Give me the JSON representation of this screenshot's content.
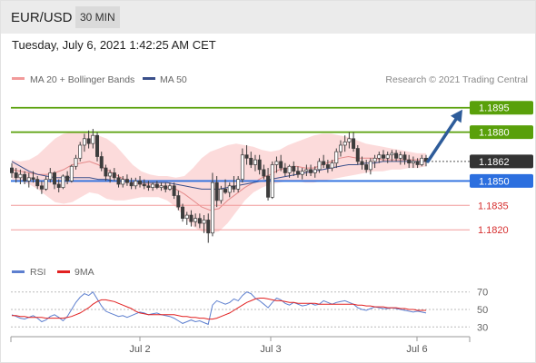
{
  "header": {
    "symbol": "EUR/USD",
    "timeframe": "30 MIN"
  },
  "datetime": "Tuesday, July 6, 2021 1:42:25 AM CET",
  "colors": {
    "price_candle": "#3c3c3c",
    "bollinger_fill": "#fbd5d5",
    "ma20": "#e48a8a",
    "ma50": "#3a4f8a",
    "resistance": "#59a00a",
    "pivot": "#2c6fdf",
    "support": "#f29a9a",
    "current": "#333333",
    "arrow": "#2e5c9a",
    "rsi": "#5d7fcf",
    "rsi_ma": "#e22121"
  },
  "icons": {
    "legend_ma20": "pink-line-swatch",
    "legend_ma50": "blue-line-swatch",
    "legend_rsi": "blue-line-swatch",
    "legend_9ma": "red-line-swatch",
    "arrow": "up-right-arrow"
  },
  "chart_data": {
    "type": "candlestick",
    "legend": [
      {
        "name": "MA 20 + Bollinger Bands",
        "color": "#f29a9a"
      },
      {
        "name": "MA 50",
        "color": "#3a4f8a"
      }
    ],
    "credit": "Research © 2021 Trading Central",
    "x_ticks": [
      "Jul 2",
      "Jul 3",
      "Jul 6"
    ],
    "ylim": [
      1.18045,
      1.1906
    ],
    "current_price": "1.1862",
    "levels": [
      {
        "value": "1.1895",
        "kind": "resistance",
        "label_style": "box"
      },
      {
        "value": "1.1880",
        "kind": "resistance",
        "label_style": "box"
      },
      {
        "value": "1.1850",
        "kind": "pivot",
        "label_style": "box"
      },
      {
        "value": "1.1835",
        "kind": "support",
        "label_style": "text"
      },
      {
        "value": "1.1820",
        "kind": "support",
        "label_style": "text"
      }
    ],
    "target_arrow": {
      "from": 1.1862,
      "to": 1.1895
    },
    "candles": [
      [
        1.1858,
        1.1861,
        1.1852,
        1.1855
      ],
      [
        1.1855,
        1.1858,
        1.1849,
        1.1852
      ],
      [
        1.1852,
        1.1857,
        1.1848,
        1.1854
      ],
      [
        1.1854,
        1.1856,
        1.1848,
        1.185
      ],
      [
        1.185,
        1.1855,
        1.1846,
        1.1852
      ],
      [
        1.1852,
        1.1856,
        1.1849,
        1.1851
      ],
      [
        1.1851,
        1.1853,
        1.1845,
        1.1847
      ],
      [
        1.1847,
        1.185,
        1.1842,
        1.1845
      ],
      [
        1.1845,
        1.1853,
        1.1844,
        1.1851
      ],
      [
        1.1851,
        1.1858,
        1.1849,
        1.1855
      ],
      [
        1.1855,
        1.1856,
        1.1845,
        1.1848
      ],
      [
        1.1848,
        1.1851,
        1.1843,
        1.1846
      ],
      [
        1.1846,
        1.1854,
        1.1845,
        1.1853
      ],
      [
        1.1853,
        1.1856,
        1.1848,
        1.185
      ],
      [
        1.185,
        1.186,
        1.1849,
        1.1859
      ],
      [
        1.1859,
        1.1866,
        1.1857,
        1.1864
      ],
      [
        1.1864,
        1.1874,
        1.1862,
        1.1872
      ],
      [
        1.1872,
        1.1879,
        1.1868,
        1.1876
      ],
      [
        1.1876,
        1.1881,
        1.187,
        1.1873
      ],
      [
        1.1873,
        1.1882,
        1.187,
        1.1878
      ],
      [
        1.1878,
        1.188,
        1.1862,
        1.1865
      ],
      [
        1.1865,
        1.1868,
        1.1856,
        1.1858
      ],
      [
        1.1858,
        1.186,
        1.185,
        1.1853
      ],
      [
        1.1853,
        1.1857,
        1.1849,
        1.1855
      ],
      [
        1.1855,
        1.1858,
        1.185,
        1.1852
      ],
      [
        1.1852,
        1.1854,
        1.1846,
        1.1848
      ],
      [
        1.1848,
        1.1853,
        1.1846,
        1.1851
      ],
      [
        1.1851,
        1.1854,
        1.1847,
        1.1849
      ],
      [
        1.1849,
        1.1852,
        1.1845,
        1.1847
      ],
      [
        1.1847,
        1.1852,
        1.1845,
        1.185
      ],
      [
        1.185,
        1.1853,
        1.1846,
        1.1848
      ],
      [
        1.1848,
        1.1851,
        1.1845,
        1.1847
      ],
      [
        1.1847,
        1.185,
        1.1844,
        1.1846
      ],
      [
        1.1846,
        1.1849,
        1.1844,
        1.1848
      ],
      [
        1.1848,
        1.185,
        1.1845,
        1.1846
      ],
      [
        1.1846,
        1.1849,
        1.1844,
        1.1847
      ],
      [
        1.1847,
        1.1849,
        1.1843,
        1.1845
      ],
      [
        1.1845,
        1.1849,
        1.1844,
        1.1847
      ],
      [
        1.1847,
        1.1849,
        1.1839,
        1.1841
      ],
      [
        1.1841,
        1.1844,
        1.1832,
        1.1834
      ],
      [
        1.1834,
        1.1836,
        1.1825,
        1.1827
      ],
      [
        1.1827,
        1.1831,
        1.1823,
        1.1829
      ],
      [
        1.1829,
        1.1832,
        1.1822,
        1.1825
      ],
      [
        1.1825,
        1.183,
        1.1822,
        1.1827
      ],
      [
        1.1827,
        1.183,
        1.1821,
        1.1824
      ],
      [
        1.1824,
        1.1829,
        1.1818,
        1.1826
      ],
      [
        1.1826,
        1.183,
        1.1812,
        1.1818
      ],
      [
        1.1818,
        1.1855,
        1.1816,
        1.1849
      ],
      [
        1.1849,
        1.1853,
        1.1834,
        1.1838
      ],
      [
        1.1838,
        1.1847,
        1.1836,
        1.1845
      ],
      [
        1.1845,
        1.1851,
        1.1842,
        1.1843
      ],
      [
        1.1843,
        1.1849,
        1.184,
        1.1847
      ],
      [
        1.1847,
        1.1853,
        1.1843,
        1.1845
      ],
      [
        1.1845,
        1.1853,
        1.1843,
        1.1851
      ],
      [
        1.1851,
        1.187,
        1.1849,
        1.1866
      ],
      [
        1.1866,
        1.1872,
        1.186,
        1.1864
      ],
      [
        1.1864,
        1.1868,
        1.1858,
        1.186
      ],
      [
        1.186,
        1.1866,
        1.1856,
        1.1863
      ],
      [
        1.1863,
        1.1866,
        1.1854,
        1.1857
      ],
      [
        1.1857,
        1.186,
        1.1851,
        1.1853
      ],
      [
        1.1853,
        1.1858,
        1.1838,
        1.184
      ],
      [
        1.184,
        1.1862,
        1.1839,
        1.186
      ],
      [
        1.186,
        1.1865,
        1.1855,
        1.1862
      ],
      [
        1.1862,
        1.1866,
        1.1856,
        1.1858
      ],
      [
        1.1858,
        1.1861,
        1.1853,
        1.1855
      ],
      [
        1.1855,
        1.186,
        1.1852,
        1.1859
      ],
      [
        1.1859,
        1.1862,
        1.1853,
        1.1856
      ],
      [
        1.1856,
        1.1859,
        1.1852,
        1.1854
      ],
      [
        1.1854,
        1.1858,
        1.1851,
        1.1856
      ],
      [
        1.1856,
        1.186,
        1.1853,
        1.1857
      ],
      [
        1.1857,
        1.186,
        1.1853,
        1.1855
      ],
      [
        1.1855,
        1.1859,
        1.1852,
        1.1857
      ],
      [
        1.1857,
        1.1864,
        1.1855,
        1.1862
      ],
      [
        1.1862,
        1.1866,
        1.1858,
        1.186
      ],
      [
        1.186,
        1.1863,
        1.1855,
        1.1858
      ],
      [
        1.1858,
        1.1863,
        1.1856,
        1.1861
      ],
      [
        1.1861,
        1.187,
        1.1858,
        1.1868
      ],
      [
        1.1868,
        1.1875,
        1.1865,
        1.1872
      ],
      [
        1.1872,
        1.1878,
        1.1868,
        1.1874
      ],
      [
        1.1874,
        1.188,
        1.187,
        1.1876
      ],
      [
        1.1876,
        1.188,
        1.1868,
        1.187
      ],
      [
        1.187,
        1.1872,
        1.186,
        1.1862
      ],
      [
        1.1862,
        1.1865,
        1.1857,
        1.186
      ],
      [
        1.186,
        1.1863,
        1.1855,
        1.1857
      ],
      [
        1.1857,
        1.1864,
        1.1854,
        1.1862
      ],
      [
        1.1862,
        1.1866,
        1.1858,
        1.1864
      ],
      [
        1.1864,
        1.1868,
        1.1861,
        1.1866
      ],
      [
        1.1866,
        1.1869,
        1.1862,
        1.1864
      ],
      [
        1.1864,
        1.1868,
        1.1861,
        1.1866
      ],
      [
        1.1866,
        1.1869,
        1.1862,
        1.1867
      ],
      [
        1.1867,
        1.1869,
        1.1862,
        1.1864
      ],
      [
        1.1864,
        1.1868,
        1.186,
        1.1866
      ],
      [
        1.1866,
        1.1868,
        1.186,
        1.1863
      ],
      [
        1.1863,
        1.1866,
        1.1858,
        1.1861
      ],
      [
        1.1861,
        1.1865,
        1.1858,
        1.1862
      ],
      [
        1.1862,
        1.1864,
        1.1858,
        1.186
      ],
      [
        1.186,
        1.1866,
        1.1859,
        1.1864
      ],
      [
        1.1864,
        1.1866,
        1.1859,
        1.1862
      ]
    ],
    "ma20": [
      1.1857,
      1.1856,
      1.1855,
      1.1854,
      1.1854,
      1.1855,
      1.1857,
      1.186,
      1.1861,
      1.1862,
      1.186,
      1.1857,
      1.1854,
      1.1851,
      1.1849,
      1.1848,
      1.1848,
      1.1847,
      1.1846,
      1.1845,
      1.1842,
      1.1838,
      1.1834,
      1.1832,
      1.1833,
      1.1838,
      1.1842,
      1.1846,
      1.1849,
      1.1852,
      1.1854,
      1.1857,
      1.1858,
      1.1859,
      1.1858,
      1.1858,
      1.186,
      1.1862,
      1.1864,
      1.1865,
      1.1864,
      1.1864,
      1.1864,
      1.1863,
      1.1863,
      1.1863,
      1.1863,
      1.1863,
      1.1863
    ],
    "ma50": [
      1.1862,
      1.1859,
      1.1856,
      1.1854,
      1.1853,
      1.1852,
      1.1852,
      1.1852,
      1.1852,
      1.1852,
      1.1851,
      1.1851,
      1.185,
      1.185,
      1.185,
      1.1849,
      1.1849,
      1.1849,
      1.1849,
      1.1848,
      1.1847,
      1.1846,
      1.1845,
      1.1845,
      1.1845,
      1.1846,
      1.1847,
      1.1848,
      1.1849,
      1.185,
      1.1851,
      1.1852,
      1.1853,
      1.1854,
      1.1855,
      1.1856,
      1.1857,
      1.1858,
      1.1859,
      1.186,
      1.186,
      1.1861,
      1.1861,
      1.1862,
      1.1862,
      1.1862,
      1.1862,
      1.1862,
      1.1862
    ],
    "bb_upper": [
      1.1863,
      1.1862,
      1.1863,
      1.1866,
      1.1871,
      1.1876,
      1.1879,
      1.188,
      1.188,
      1.1879,
      1.1878,
      1.1876,
      1.1872,
      1.1866,
      1.186,
      1.1856,
      1.1854,
      1.1853,
      1.1853,
      1.1852,
      1.1853,
      1.1858,
      1.1864,
      1.1868,
      1.187,
      1.1872,
      1.1873,
      1.1872,
      1.1871,
      1.1869,
      1.1868,
      1.1869,
      1.1872,
      1.1874,
      1.1876,
      1.1878,
      1.1879,
      1.1879,
      1.1878,
      1.1877,
      1.1875,
      1.1873,
      1.1872,
      1.1871,
      1.187,
      1.1869,
      1.1868,
      1.1867,
      1.1867
    ],
    "bb_lower": [
      1.1851,
      1.185,
      1.1848,
      1.1845,
      1.1841,
      1.1837,
      1.1836,
      1.1837,
      1.184,
      1.1843,
      1.1842,
      1.1839,
      1.1838,
      1.1838,
      1.1839,
      1.184,
      1.184,
      1.184,
      1.1838,
      1.1834,
      1.1828,
      1.1822,
      1.1819,
      1.1818,
      1.1819,
      1.1824,
      1.1831,
      1.1838,
      1.1843,
      1.1846,
      1.1848,
      1.1849,
      1.185,
      1.185,
      1.1849,
      1.1849,
      1.185,
      1.1851,
      1.1852,
      1.1853,
      1.1854,
      1.1855,
      1.1856,
      1.1856,
      1.1857,
      1.1857,
      1.1858,
      1.1858,
      1.1859
    ],
    "indicator": {
      "legend": [
        {
          "name": "RSI",
          "color": "#5d7fcf"
        },
        {
          "name": "9MA",
          "color": "#e22121"
        }
      ],
      "levels": [
        70,
        50,
        30
      ],
      "ylim": [
        22,
        78
      ],
      "rsi": [
        44,
        42,
        40,
        39,
        41,
        43,
        40,
        36,
        38,
        42,
        44,
        41,
        37,
        42,
        50,
        58,
        64,
        68,
        66,
        70,
        62,
        54,
        48,
        46,
        44,
        42,
        43,
        41,
        43,
        45,
        47,
        46,
        44,
        45,
        46,
        44,
        43,
        42,
        40,
        37,
        34,
        36,
        38,
        36,
        37,
        35,
        33,
        55,
        60,
        58,
        56,
        58,
        62,
        60,
        66,
        70,
        68,
        63,
        60,
        56,
        52,
        58,
        63,
        61,
        57,
        55,
        58,
        56,
        54,
        55,
        57,
        55,
        56,
        60,
        58,
        56,
        58,
        59,
        60,
        58,
        56,
        52,
        50,
        49,
        51,
        53,
        52,
        51,
        51,
        52,
        51,
        50,
        49,
        48,
        47,
        48,
        47,
        46
      ],
      "ma9": [
        43,
        43,
        42,
        42,
        41,
        41,
        41,
        41,
        40,
        40,
        40,
        40,
        40,
        41,
        42,
        44,
        46,
        49,
        52,
        56,
        59,
        61,
        61,
        60,
        59,
        57,
        55,
        53,
        51,
        48,
        46,
        45,
        44,
        44,
        44,
        44,
        44,
        44,
        44,
        43,
        42,
        42,
        41,
        41,
        40,
        40,
        39,
        39,
        40,
        42,
        44,
        46,
        49,
        52,
        55,
        58,
        60,
        62,
        63,
        63,
        62,
        61,
        60,
        60,
        59,
        58,
        58,
        57,
        57,
        57,
        57,
        57,
        56,
        56,
        56,
        56,
        56,
        56,
        56,
        56,
        56,
        55,
        55,
        54,
        54,
        53,
        53,
        53,
        52,
        52,
        52,
        51,
        51,
        50,
        50,
        49,
        49,
        49
      ]
    }
  }
}
